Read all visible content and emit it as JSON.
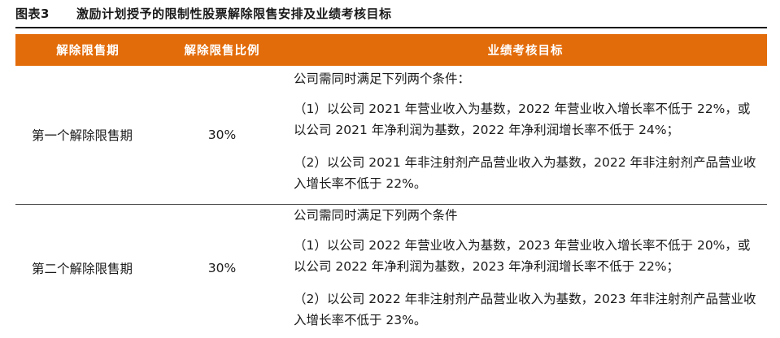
{
  "figure": {
    "label": "图表3",
    "title": "激励计划授予的限制性股票解除限售安排及业绩考核目标"
  },
  "table": {
    "headers": [
      "解除限售期",
      "解除限售比例",
      "业绩考核目标"
    ],
    "rows": [
      {
        "period": "第一个解除限售期",
        "ratio": "30%",
        "target_intro": "公司需同时满足下列两个条件：",
        "condition_1": "（1）以公司 2021 年营业收入为基数，2022 年营业收入增长率不低于 22%，或以公司 2021 年净利润为基数，2022 年净利润增长率不低于 24%；",
        "condition_2": "（2）以公司 2021 年非注射剂产品营业收入为基数，2022 年非注射剂产品营业收入增长率不低于 22%。"
      },
      {
        "period": "第二个解除限售期",
        "ratio": "30%",
        "target_intro": "公司需同时满足下列两个条件",
        "condition_1": "（1）以公司 2022 年营业收入为基数，2023 年营业收入增长率不低于 20%，或以公司 2022 年净利润为基数，2023 年净利润增长率不低于 22%；",
        "condition_2": "（2）以公司 2022 年非注射剂产品营业收入为基数，2023 年非注射剂产品营业收入增长率不低于 23%。"
      }
    ]
  },
  "colors": {
    "header_bg": "#e36c0a",
    "header_text": "#ffffff",
    "rule": "#1a1a1a"
  }
}
